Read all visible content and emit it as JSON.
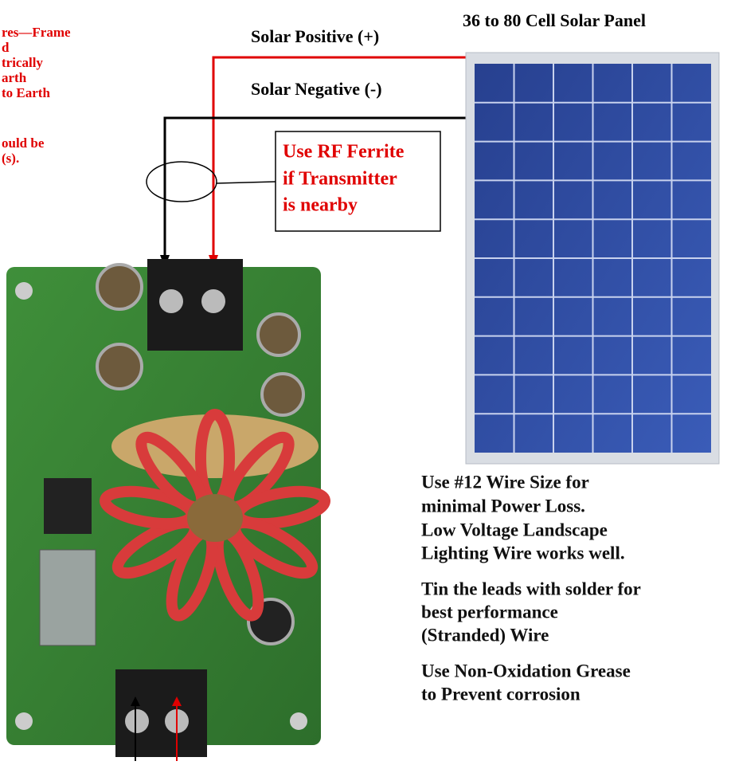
{
  "top_left_note": {
    "lines": [
      "res—Frame",
      "d",
      "trically",
      "arth",
      "to Earth",
      "ould be",
      "(s)."
    ]
  },
  "solar_positive": "Solar Positive (+)",
  "solar_negative": "Solar Negative (-)",
  "panel_title": "36 to 80 Cell Solar Panel",
  "ferrite_note": {
    "lines": [
      "Use RF Ferrite",
      "if Transmitter",
      "is nearby"
    ]
  },
  "notes": [
    {
      "lines": [
        "Use #12 Wire Size for",
        "minimal Power Loss.",
        "Low Voltage Landscape",
        "Lighting Wire works well."
      ]
    },
    {
      "lines": [
        "Tin the leads with solder for",
        "best performance",
        "(Stranded) Wire"
      ]
    },
    {
      "lines": [
        "Use Non-Oxidation Grease",
        "to Prevent corrosion"
      ]
    }
  ]
}
